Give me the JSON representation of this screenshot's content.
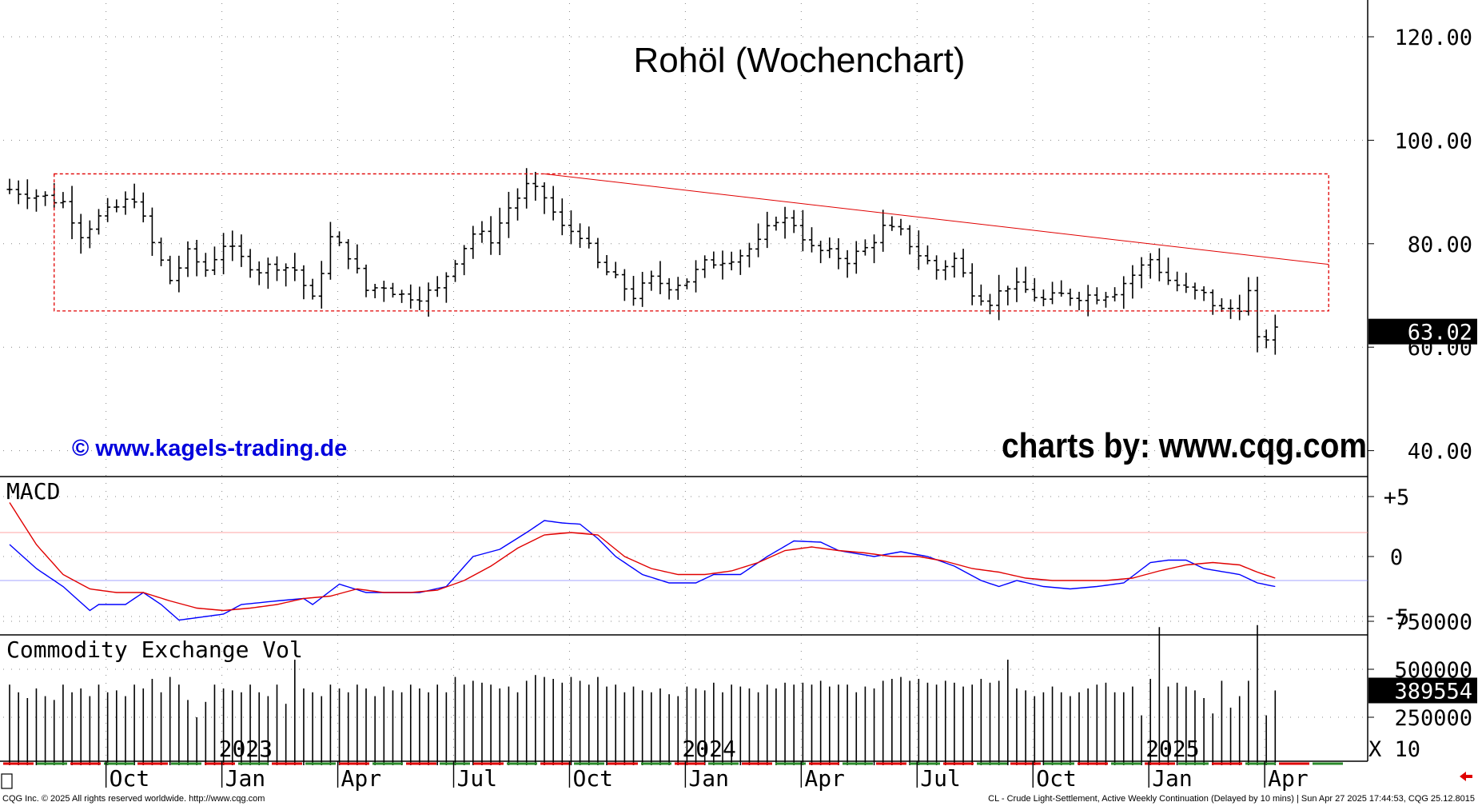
{
  "title": "Rohöl (Wochenchart)",
  "watermark_left": "© www.kagels-trading.de",
  "watermark_right": "charts by: www.cqg.com",
  "footer_left": "CQG Inc. © 2025 All rights reserved worldwide. http://www.cqg.com",
  "footer_right": "CL - Crude Light-Settlement, Active Weekly Continuation (Delayed by 10 mins) | Sun Apr 27 2025 17:44:53, CQG 25.12.8015",
  "colors": {
    "bars": "#000000",
    "box": "#e00000",
    "trend": "#e00000",
    "macd_line": "#0000ff",
    "signal_line": "#e00000",
    "watermark_blue": "#0000dd"
  },
  "chart_data": [
    {
      "type": "ohlc",
      "name": "price",
      "x_unit": "weeks",
      "x_ticks": [
        {
          "label": "Oct",
          "week": 11
        },
        {
          "label": "Jan",
          "week": 24
        },
        {
          "label": "Apr",
          "week": 37
        },
        {
          "label": "Jul",
          "week": 50
        },
        {
          "label": "Oct",
          "week": 63
        },
        {
          "label": "Jan",
          "week": 76
        },
        {
          "label": "Apr",
          "week": 89
        },
        {
          "label": "Jul",
          "week": 102
        },
        {
          "label": "Oct",
          "week": 115
        },
        {
          "label": "Jan",
          "week": 128
        },
        {
          "label": "Apr",
          "week": 141
        }
      ],
      "year_labels": [
        {
          "label": "2023",
          "week": 24
        },
        {
          "label": "2024",
          "week": 76
        },
        {
          "label": "2025",
          "week": 128
        }
      ],
      "y_ticks": [
        40,
        60,
        80,
        100,
        120
      ],
      "y_tick_labels": [
        "40.00",
        "60.00",
        "80.00",
        "100.00",
        "120.00"
      ],
      "ylim": [
        30,
        126
      ],
      "last_price": 63.02,
      "last_price_label": "63.02",
      "anchors": [
        [
          0,
          90.5
        ],
        [
          4,
          89
        ],
        [
          6,
          88
        ],
        [
          8,
          82
        ],
        [
          10,
          85
        ],
        [
          12,
          87
        ],
        [
          14,
          89
        ],
        [
          16,
          80
        ],
        [
          18,
          73
        ],
        [
          20,
          78
        ],
        [
          22,
          75
        ],
        [
          24,
          80
        ],
        [
          26,
          77
        ],
        [
          28,
          75
        ],
        [
          30,
          76
        ],
        [
          32,
          75
        ],
        [
          34,
          69
        ],
        [
          36,
          81
        ],
        [
          38,
          78
        ],
        [
          40,
          71
        ],
        [
          42,
          72
        ],
        [
          44,
          70
        ],
        [
          46,
          70
        ],
        [
          48,
          71
        ],
        [
          50,
          77
        ],
        [
          52,
          82
        ],
        [
          54,
          81
        ],
        [
          56,
          87
        ],
        [
          58,
          91
        ],
        [
          60,
          89
        ],
        [
          62,
          83
        ],
        [
          64,
          82
        ],
        [
          66,
          76
        ],
        [
          68,
          73
        ],
        [
          70,
          70
        ],
        [
          72,
          73
        ],
        [
          74,
          72
        ],
        [
          76,
          73
        ],
        [
          78,
          76
        ],
        [
          80,
          77
        ],
        [
          82,
          78
        ],
        [
          84,
          80
        ],
        [
          86,
          85
        ],
        [
          88,
          84
        ],
        [
          90,
          79
        ],
        [
          92,
          78
        ],
        [
          94,
          77
        ],
        [
          96,
          79
        ],
        [
          98,
          83
        ],
        [
          100,
          82
        ],
        [
          102,
          78
        ],
        [
          104,
          75
        ],
        [
          106,
          77
        ],
        [
          108,
          71
        ],
        [
          110,
          69
        ],
        [
          112,
          72
        ],
        [
          114,
          71
        ],
        [
          116,
          69
        ],
        [
          118,
          70
        ],
        [
          120,
          70
        ],
        [
          122,
          70
        ],
        [
          124,
          71
        ],
        [
          126,
          74
        ],
        [
          128,
          77
        ],
        [
          130,
          73
        ],
        [
          132,
          71
        ],
        [
          134,
          70
        ],
        [
          136,
          67
        ],
        [
          138,
          68
        ],
        [
          139,
          70.5
        ],
        [
          140,
          61
        ],
        [
          141,
          62
        ],
        [
          142,
          63
        ]
      ],
      "rectangle": {
        "week_start": 5,
        "week_end": 148,
        "price_low": 67,
        "price_high": 93.5
      },
      "trendline": {
        "start": [
          60,
          93.5
        ],
        "end": [
          148,
          76
        ]
      }
    },
    {
      "type": "line",
      "name": "MACD",
      "label": "MACD",
      "y_ticks": [
        5,
        0,
        -5
      ],
      "y_tick_labels": [
        "+5",
        "0",
        "-5"
      ],
      "ylim": [
        -6.5,
        6.5
      ],
      "ref_lines": [
        2,
        -2
      ],
      "series": [
        {
          "values_anchors": [
            [
              0,
              1
            ],
            [
              3,
              -1
            ],
            [
              6,
              -2.5
            ],
            [
              9,
              -4.5
            ],
            [
              10,
              -4
            ],
            [
              13,
              -4
            ],
            [
              15,
              -3
            ],
            [
              17,
              -4
            ],
            [
              19,
              -5.3
            ],
            [
              22,
              -5
            ],
            [
              24,
              -4.8
            ],
            [
              26,
              -4
            ],
            [
              30,
              -3.7
            ],
            [
              33,
              -3.5
            ],
            [
              34,
              -4
            ],
            [
              37,
              -2.3
            ],
            [
              40,
              -3
            ],
            [
              43,
              -3
            ],
            [
              46,
              -3
            ],
            [
              49,
              -2.5
            ],
            [
              52,
              0
            ],
            [
              55,
              0.6
            ],
            [
              58,
              2
            ],
            [
              60,
              3
            ],
            [
              62,
              2.8
            ],
            [
              64,
              2.7
            ],
            [
              66,
              1.5
            ],
            [
              68,
              0
            ],
            [
              71,
              -1.5
            ],
            [
              74,
              -2.2
            ],
            [
              77,
              -2.2
            ],
            [
              79,
              -1.5
            ],
            [
              82,
              -1.5
            ],
            [
              85,
              0
            ],
            [
              88,
              1.3
            ],
            [
              91,
              1.2
            ],
            [
              93,
              0.5
            ],
            [
              97,
              0
            ],
            [
              100,
              0.4
            ],
            [
              103,
              0
            ],
            [
              106,
              -0.8
            ],
            [
              109,
              -2
            ],
            [
              111,
              -2.5
            ],
            [
              113,
              -2
            ],
            [
              116,
              -2.5
            ],
            [
              119,
              -2.7
            ],
            [
              122,
              -2.5
            ],
            [
              125,
              -2.2
            ],
            [
              128,
              -0.5
            ],
            [
              130,
              -0.3
            ],
            [
              132,
              -0.3
            ],
            [
              134,
              -1
            ],
            [
              138,
              -1.5
            ],
            [
              140,
              -2.2
            ],
            [
              142,
              -2.5
            ]
          ]
        },
        {
          "values_anchors": [
            [
              0,
              4.5
            ],
            [
              3,
              1
            ],
            [
              6,
              -1.5
            ],
            [
              9,
              -2.7
            ],
            [
              12,
              -3
            ],
            [
              15,
              -3
            ],
            [
              18,
              -3.7
            ],
            [
              21,
              -4.3
            ],
            [
              24,
              -4.5
            ],
            [
              27,
              -4.3
            ],
            [
              30,
              -4
            ],
            [
              33,
              -3.5
            ],
            [
              36,
              -3.3
            ],
            [
              39,
              -2.7
            ],
            [
              42,
              -3
            ],
            [
              45,
              -3
            ],
            [
              48,
              -2.8
            ],
            [
              51,
              -2
            ],
            [
              54,
              -0.8
            ],
            [
              57,
              0.7
            ],
            [
              60,
              1.8
            ],
            [
              63,
              2
            ],
            [
              66,
              1.8
            ],
            [
              69,
              0
            ],
            [
              72,
              -1
            ],
            [
              75,
              -1.5
            ],
            [
              78,
              -1.5
            ],
            [
              81,
              -1.2
            ],
            [
              84,
              -0.5
            ],
            [
              87,
              0.5
            ],
            [
              90,
              0.8
            ],
            [
              93,
              0.5
            ],
            [
              96,
              0.3
            ],
            [
              99,
              0
            ],
            [
              102,
              0
            ],
            [
              105,
              -0.4
            ],
            [
              108,
              -1
            ],
            [
              111,
              -1.3
            ],
            [
              114,
              -1.8
            ],
            [
              117,
              -2
            ],
            [
              120,
              -2
            ],
            [
              123,
              -2
            ],
            [
              126,
              -1.8
            ],
            [
              129,
              -1.2
            ],
            [
              132,
              -0.7
            ],
            [
              135,
              -0.5
            ],
            [
              138,
              -0.7
            ],
            [
              140,
              -1.3
            ],
            [
              142,
              -1.8
            ]
          ]
        }
      ]
    },
    {
      "type": "bar",
      "name": "volume",
      "label": "Commodity Exchange Vol",
      "y_ticks": [
        250000,
        500000,
        750000
      ],
      "y_tick_labels": [
        "250000",
        "500000",
        "750000"
      ],
      "ylim": [
        0,
        850000
      ],
      "multiplier_label": "X 10",
      "last_value_label": "389554",
      "values": [
        420000,
        380000,
        350000,
        400000,
        360000,
        340000,
        420000,
        380000,
        400000,
        360000,
        420000,
        380000,
        390000,
        360000,
        420000,
        400000,
        450000,
        380000,
        460000,
        420000,
        340000,
        250000,
        330000,
        420000,
        400000,
        390000,
        380000,
        420000,
        380000,
        360000,
        420000,
        320000,
        550000,
        400000,
        380000,
        360000,
        420000,
        400000,
        380000,
        420000,
        400000,
        360000,
        410000,
        390000,
        380000,
        420000,
        400000,
        380000,
        420000,
        380000,
        460000,
        420000,
        440000,
        430000,
        420000,
        400000,
        410000,
        380000,
        440000,
        470000,
        460000,
        450000,
        430000,
        460000,
        440000,
        420000,
        460000,
        410000,
        420000,
        380000,
        410000,
        390000,
        380000,
        400000,
        370000,
        360000,
        410000,
        400000,
        390000,
        430000,
        380000,
        420000,
        410000,
        400000,
        380000,
        420000,
        400000,
        430000,
        420000,
        430000,
        420000,
        440000,
        410000,
        420000,
        420000,
        380000,
        410000,
        400000,
        440000,
        450000,
        460000,
        440000,
        450000,
        430000,
        420000,
        440000,
        430000,
        410000,
        420000,
        450000,
        430000,
        440000,
        550000,
        400000,
        390000,
        360000,
        380000,
        410000,
        380000,
        360000,
        380000,
        400000,
        420000,
        430000,
        380000,
        380000,
        410000,
        260000,
        450000,
        720000,
        410000,
        430000,
        410000,
        390000,
        350000,
        270000,
        440000,
        300000,
        360000,
        440000,
        730000,
        260000,
        389554
      ]
    }
  ]
}
